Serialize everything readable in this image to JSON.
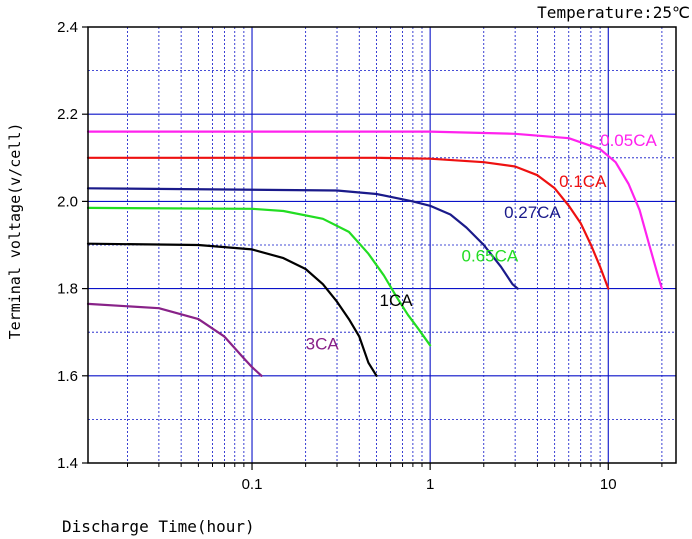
{
  "chart_data": {
    "type": "line",
    "title": "",
    "annotation": "Temperature:25℃",
    "xlabel": "Discharge Time(hour)",
    "ylabel": "Terminal voltage(v/cell)",
    "x_scale": "log",
    "xlim": [
      0.012,
      24
    ],
    "ylim": [
      1.4,
      2.4
    ],
    "x_ticks": [
      0.1,
      1,
      10
    ],
    "x_tick_labels": [
      "0.1",
      "1",
      "10"
    ],
    "y_ticks": [
      1.4,
      1.6,
      1.8,
      2.0,
      2.2,
      2.4
    ],
    "y_tick_labels": [
      "1.4",
      "1.6",
      "1.8",
      "2.0",
      "2.2",
      "2.4"
    ],
    "grid": true,
    "grid_color": "#0a12c8",
    "series": [
      {
        "name": "0.05CA",
        "color": "#ff22ee",
        "points": [
          [
            0.012,
            2.16
          ],
          [
            1,
            2.16
          ],
          [
            3,
            2.155
          ],
          [
            6,
            2.145
          ],
          [
            9,
            2.12
          ],
          [
            11,
            2.09
          ],
          [
            13,
            2.04
          ],
          [
            15,
            1.98
          ],
          [
            17,
            1.9
          ],
          [
            19,
            1.83
          ],
          [
            20,
            1.8
          ]
        ]
      },
      {
        "name": "0.1CA",
        "color": "#ee1111",
        "points": [
          [
            0.012,
            2.1
          ],
          [
            0.5,
            2.1
          ],
          [
            1,
            2.098
          ],
          [
            2,
            2.09
          ],
          [
            3,
            2.08
          ],
          [
            4,
            2.06
          ],
          [
            5,
            2.03
          ],
          [
            6,
            1.99
          ],
          [
            7,
            1.95
          ],
          [
            8,
            1.9
          ],
          [
            9,
            1.85
          ],
          [
            10,
            1.8
          ]
        ]
      },
      {
        "name": "0.27CA",
        "color": "#1a1a8a",
        "points": [
          [
            0.012,
            2.03
          ],
          [
            0.3,
            2.025
          ],
          [
            0.5,
            2.017
          ],
          [
            0.8,
            2.0
          ],
          [
            1.0,
            1.99
          ],
          [
            1.3,
            1.97
          ],
          [
            1.6,
            1.94
          ],
          [
            2.0,
            1.9
          ],
          [
            2.5,
            1.85
          ],
          [
            2.9,
            1.81
          ],
          [
            3.1,
            1.8
          ]
        ]
      },
      {
        "name": "0.65CA",
        "color": "#22dd22",
        "points": [
          [
            0.012,
            1.985
          ],
          [
            0.1,
            1.983
          ],
          [
            0.15,
            1.978
          ],
          [
            0.25,
            1.96
          ],
          [
            0.35,
            1.93
          ],
          [
            0.45,
            1.88
          ],
          [
            0.55,
            1.83
          ],
          [
            0.65,
            1.78
          ],
          [
            0.75,
            1.74
          ],
          [
            0.85,
            1.71
          ],
          [
            1.0,
            1.67
          ]
        ]
      },
      {
        "name": "1CA",
        "color": "#000000",
        "points": [
          [
            0.012,
            1.903
          ],
          [
            0.05,
            1.9
          ],
          [
            0.1,
            1.89
          ],
          [
            0.15,
            1.87
          ],
          [
            0.2,
            1.845
          ],
          [
            0.25,
            1.81
          ],
          [
            0.3,
            1.77
          ],
          [
            0.35,
            1.73
          ],
          [
            0.4,
            1.69
          ],
          [
            0.45,
            1.63
          ],
          [
            0.5,
            1.6
          ]
        ]
      },
      {
        "name": "3CA",
        "color": "#882288",
        "points": [
          [
            0.012,
            1.765
          ],
          [
            0.03,
            1.755
          ],
          [
            0.05,
            1.73
          ],
          [
            0.07,
            1.69
          ],
          [
            0.09,
            1.64
          ],
          [
            0.1,
            1.62
          ],
          [
            0.113,
            1.6
          ]
        ]
      }
    ],
    "series_label_positions": [
      {
        "name": "0.05CA",
        "x": 9.0,
        "y": 2.127
      },
      {
        "name": "0.1CA",
        "x": 5.3,
        "y": 2.033
      },
      {
        "name": "0.27CA",
        "x": 2.6,
        "y": 1.962
      },
      {
        "name": "0.65CA",
        "x": 1.5,
        "y": 1.862
      },
      {
        "name": "1CA",
        "x": 0.52,
        "y": 1.76
      },
      {
        "name": "3CA",
        "x": 0.2,
        "y": 1.66
      }
    ]
  }
}
